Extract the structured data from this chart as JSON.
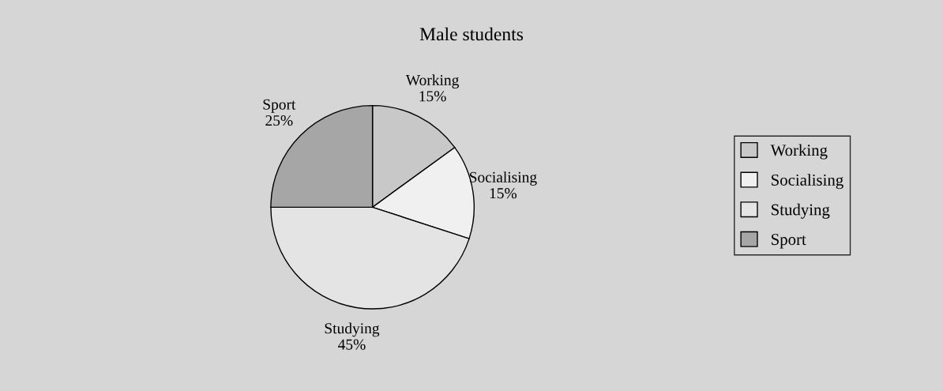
{
  "chart_data": {
    "type": "pie",
    "title": "Male students",
    "categories": [
      "Working",
      "Socialising",
      "Studying",
      "Sport"
    ],
    "values": [
      15,
      15,
      45,
      25
    ],
    "value_labels": [
      "15%",
      "15%",
      "45%",
      "25%"
    ],
    "colors": [
      "#c8c8c8",
      "#f0f0f0",
      "#e4e4e4",
      "#a6a6a6"
    ],
    "legend": "right"
  }
}
